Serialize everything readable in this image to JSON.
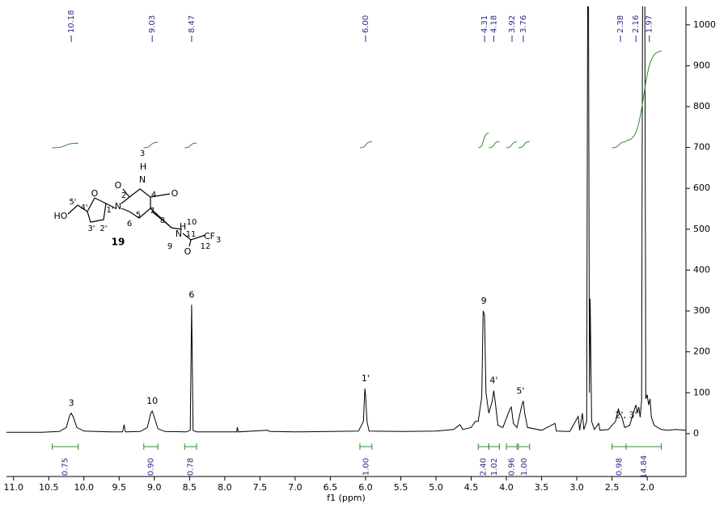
{
  "chart_data": {
    "type": "line",
    "xlabel": "f1 (ppm)",
    "xlim": [
      11.1,
      1.45
    ],
    "ylim": [
      -105,
      1045
    ],
    "xticks": [
      {
        "value": 11,
        "label": "11.0"
      },
      10.5,
      {
        "value": 10,
        "label": "10.0"
      },
      9.5,
      {
        "value": 9,
        "label": "9.0"
      },
      8.5,
      {
        "value": 8,
        "label": "8.0"
      },
      7.5,
      {
        "value": 7,
        "label": "7.0"
      },
      6.5,
      {
        "value": 6,
        "label": "6.0"
      },
      5.5,
      {
        "value": 5,
        "label": "5.0"
      },
      4.5,
      {
        "value": 4,
        "label": "4.0"
      },
      3.5,
      {
        "value": 3,
        "label": "3.0"
      },
      2.5,
      {
        "value": 2,
        "label": "2.0"
      }
    ],
    "yticks": [
      0,
      100,
      200,
      300,
      400,
      500,
      600,
      700,
      800,
      900,
      1000
    ],
    "series": [
      {
        "color": "#000000",
        "x": [
          11.1,
          10.6,
          10.35,
          10.25,
          10.2,
          10.18,
          10.15,
          10.1,
          10.0,
          9.6,
          9.45,
          9.43,
          9.41,
          9.2,
          9.1,
          9.05,
          9.03,
          9.0,
          8.95,
          8.85,
          8.55,
          8.49,
          8.47,
          8.45,
          8.4,
          8.2,
          7.83,
          7.82,
          7.81,
          7.4,
          7.35,
          7.0,
          6.5,
          6.1,
          6.03,
          6.01,
          6.0,
          5.98,
          5.95,
          5.5,
          5.0,
          4.75,
          4.66,
          4.62,
          4.5,
          4.44,
          4.4,
          4.35,
          4.33,
          4.31,
          4.29,
          4.25,
          4.2,
          4.18,
          4.16,
          4.12,
          4.05,
          3.95,
          3.93,
          3.9,
          3.85,
          3.78,
          3.76,
          3.74,
          3.7,
          3.5,
          3.31,
          3.29,
          3.1,
          2.98,
          2.96,
          2.92,
          2.9,
          2.86,
          2.84,
          2.82,
          2.81,
          2.79,
          2.75,
          2.69,
          2.67,
          2.55,
          2.45,
          2.41,
          2.39,
          2.36,
          2.32,
          2.25,
          2.18,
          2.16,
          2.14,
          2.12,
          2.1,
          2.08,
          2.06,
          2.04,
          2.02,
          2.0,
          1.98,
          1.96,
          1.94,
          1.9,
          1.8,
          1.7,
          1.6,
          1.45
        ],
        "values": [
          3,
          3,
          5,
          15,
          45,
          50,
          40,
          15,
          6,
          4,
          4,
          22,
          4,
          5,
          15,
          50,
          55,
          40,
          12,
          5,
          4,
          8,
          315,
          8,
          4,
          4,
          4,
          16,
          4,
          8,
          5,
          4,
          5,
          6,
          30,
          110,
          95,
          30,
          6,
          5,
          6,
          10,
          22,
          10,
          15,
          30,
          30,
          90,
          300,
          290,
          100,
          50,
          80,
          105,
          80,
          20,
          15,
          60,
          65,
          25,
          15,
          70,
          80,
          50,
          15,
          8,
          25,
          6,
          5,
          42,
          8,
          50,
          10,
          30,
          1500,
          100,
          330,
          30,
          10,
          25,
          8,
          10,
          30,
          60,
          50,
          40,
          15,
          20,
          60,
          70,
          50,
          65,
          40,
          80,
          1500,
          1500,
          85,
          95,
          70,
          85,
          40,
          20,
          10,
          8,
          10,
          8
        ]
      }
    ],
    "peak_labels": [
      10.18,
      9.03,
      8.47,
      {
        "value": 6,
        "label": "6.00"
      },
      4.31,
      4.18,
      3.92,
      3.76,
      2.38,
      2.16,
      1.97
    ],
    "assignments": [
      {
        "ppm": 10.18,
        "label": "3"
      },
      {
        "ppm": 9.03,
        "label": "10"
      },
      {
        "ppm": 8.47,
        "label": "6"
      },
      {
        "ppm": 6.0,
        "label": "1'"
      },
      {
        "ppm": 4.32,
        "label": "9"
      },
      {
        "ppm": 4.18,
        "label": "4'"
      },
      {
        "ppm": 3.8,
        "label": "5'"
      },
      {
        "ppm": 2.3,
        "label": "2', 3'"
      }
    ],
    "integral_color": "#2e8b2e",
    "integrals": [
      {
        "range": [
          10.45,
          10.08
        ],
        "value": 0.75
      },
      {
        "range": [
          9.15,
          8.95
        ],
        "value": 0.9,
        "label": "0.90"
      },
      {
        "range": [
          8.57,
          8.4
        ],
        "value": 0.78
      },
      {
        "range": [
          6.08,
          5.91
        ],
        "value": 1,
        "label": "1.00"
      },
      {
        "range": [
          4.4,
          4.25
        ],
        "value": 2.4,
        "label": "2.40"
      },
      {
        "range": [
          4.25,
          4.1
        ],
        "value": 1.02
      },
      {
        "range": [
          4.0,
          3.85
        ],
        "value": 0.96
      },
      {
        "range": [
          3.83,
          3.67
        ],
        "value": 1,
        "label": "1.00"
      },
      {
        "range": [
          2.5,
          2.3
        ],
        "value": 0.98
      },
      {
        "range": [
          2.3,
          1.8
        ],
        "value": 14.84
      }
    ]
  },
  "structure": {
    "compound": "19",
    "labels": [
      "HO",
      "5'",
      "4'",
      "O",
      "1'",
      "2'",
      "3'",
      "N",
      "2",
      "O",
      "3",
      "H",
      "N",
      "4",
      "O",
      "5",
      "6",
      "7",
      "8",
      "H",
      "10",
      "N",
      "9",
      "11",
      "O",
      "CF",
      "3",
      "12"
    ]
  }
}
